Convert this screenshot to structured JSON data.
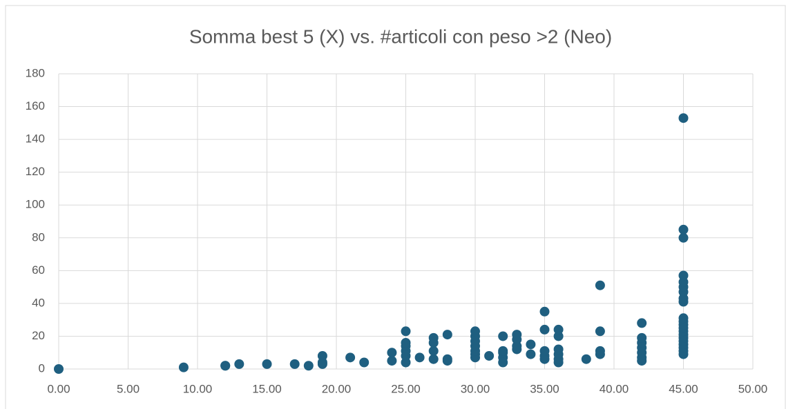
{
  "chart_data": {
    "type": "scatter",
    "title": "Somma best 5 (X) vs. #articoli con peso >2 (Neo)",
    "color": "#1f5f80",
    "x": [
      0,
      9,
      12,
      12,
      13,
      15,
      17,
      18,
      19,
      19,
      19,
      21,
      22,
      24,
      24,
      25,
      25,
      25,
      25,
      25,
      25,
      26,
      27,
      27,
      27,
      27,
      28,
      28,
      28,
      30,
      30,
      30,
      30,
      30,
      30,
      30,
      31,
      32,
      32,
      32,
      32,
      32,
      33,
      33,
      33,
      33,
      34,
      34,
      35,
      35,
      35,
      35,
      35,
      36,
      36,
      36,
      36,
      36,
      36,
      38,
      39,
      39,
      39,
      39,
      42,
      42,
      42,
      42,
      42,
      42,
      42,
      45,
      45,
      45,
      45,
      45,
      45,
      45,
      45,
      45,
      45,
      45,
      45,
      45,
      45,
      45,
      45,
      45,
      45,
      45,
      45,
      45
    ],
    "values": [
      0,
      1,
      2,
      2,
      3,
      3,
      3,
      2,
      3,
      4,
      8,
      7,
      4,
      5,
      10,
      4,
      8,
      11,
      14,
      16,
      23,
      7,
      6,
      11,
      16,
      19,
      5,
      6,
      21,
      7,
      9,
      11,
      14,
      17,
      20,
      23,
      8,
      4,
      7,
      10,
      11,
      20,
      12,
      14,
      18,
      21,
      9,
      15,
      6,
      8,
      11,
      24,
      35,
      4,
      6,
      9,
      12,
      20,
      24,
      6,
      9,
      11,
      23,
      51,
      5,
      7,
      10,
      13,
      16,
      19,
      28,
      9,
      11,
      13,
      15,
      17,
      19,
      21,
      23,
      25,
      27,
      29,
      31,
      41,
      43,
      47,
      50,
      53,
      57,
      80,
      85,
      153
    ],
    "xlim": [
      0,
      50
    ],
    "xticks": [
      {
        "value": 0,
        "label": "0.00"
      },
      {
        "value": 5,
        "label": "5.00"
      },
      {
        "value": 10,
        "label": "10.00"
      },
      {
        "value": 15,
        "label": "15.00"
      },
      {
        "value": 20,
        "label": "20.00"
      },
      {
        "value": 25,
        "label": "25.00"
      },
      {
        "value": 30,
        "label": "30.00"
      },
      {
        "value": 35,
        "label": "35.00"
      },
      {
        "value": 40,
        "label": "40.00"
      },
      {
        "value": 45,
        "label": "45.00"
      },
      {
        "value": 50,
        "label": "50.00"
      }
    ],
    "ylim": [
      0,
      180
    ],
    "yticks": [
      0,
      20,
      40,
      60,
      80,
      100,
      120,
      140,
      160,
      180
    ],
    "grid": true
  }
}
